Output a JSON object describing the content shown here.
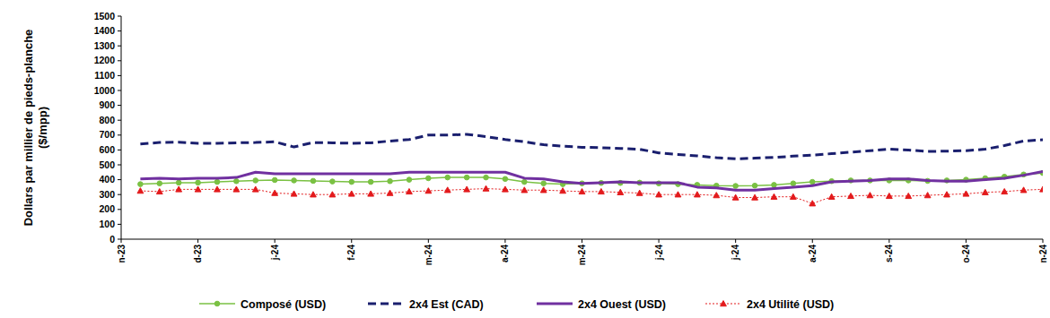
{
  "chart_data": {
    "type": "line",
    "y_label": [
      "Dollars par millier de pieds-planche",
      "($/mpp)"
    ],
    "categories": [
      "n-23",
      null,
      null,
      null,
      "d-23",
      null,
      null,
      null,
      "j-24",
      null,
      null,
      null,
      "f-24",
      null,
      null,
      null,
      "m-24",
      null,
      null,
      null,
      "a-24",
      null,
      null,
      null,
      "m-24",
      null,
      null,
      null,
      "j-24",
      null,
      null,
      null,
      "j-24",
      null,
      null,
      null,
      "a-24",
      null,
      null,
      null,
      "s-24",
      null,
      null,
      null,
      "o-24",
      null,
      null,
      null,
      "n-24"
    ],
    "ylim": [
      0,
      1500
    ],
    "yticks": [
      0,
      100,
      200,
      300,
      400,
      500,
      600,
      700,
      800,
      900,
      1000,
      1100,
      1200,
      1300,
      1400,
      1500
    ],
    "grid": false,
    "legend": "bottom",
    "series": [
      {
        "name": "Composé (USD)",
        "color": "#7ac143",
        "marker": "circle",
        "line_style": "solid",
        "values": [
          null,
          370,
          375,
          380,
          380,
          385,
          390,
          395,
          398,
          395,
          392,
          388,
          385,
          385,
          390,
          400,
          410,
          415,
          415,
          415,
          405,
          385,
          375,
          370,
          375,
          378,
          378,
          380,
          375,
          370,
          365,
          360,
          358,
          360,
          365,
          375,
          385,
          390,
          395,
          395,
          395,
          395,
          392,
          395,
          400,
          410,
          420,
          435,
          445
        ]
      },
      {
        "name": "2x4 Est (CAD)",
        "color": "#1a1f6e",
        "marker": "none",
        "line_style": "dashed",
        "values": [
          null,
          640,
          650,
          652,
          645,
          645,
          648,
          650,
          655,
          620,
          650,
          648,
          645,
          648,
          660,
          670,
          700,
          700,
          705,
          690,
          670,
          655,
          635,
          625,
          618,
          615,
          610,
          605,
          580,
          570,
          560,
          548,
          540,
          545,
          550,
          558,
          565,
          575,
          585,
          595,
          605,
          600,
          590,
          592,
          595,
          605,
          630,
          660,
          668
        ]
      },
      {
        "name": "2x4 Ouest (USD)",
        "color": "#7030a0",
        "marker": "none",
        "line_style": "solid",
        "values": [
          null,
          405,
          410,
          405,
          410,
          410,
          415,
          450,
          440,
          440,
          440,
          440,
          440,
          440,
          440,
          450,
          450,
          450,
          450,
          450,
          450,
          410,
          405,
          385,
          375,
          380,
          385,
          380,
          380,
          380,
          350,
          345,
          330,
          330,
          340,
          350,
          360,
          385,
          390,
          395,
          405,
          405,
          395,
          390,
          390,
          400,
          410,
          430,
          455
        ]
      },
      {
        "name": "2x4 Utilité (USD)",
        "color": "#e31a1c",
        "marker": "triangle",
        "line_style": "dotted",
        "values": [
          null,
          325,
          320,
          335,
          335,
          335,
          335,
          335,
          310,
          305,
          300,
          300,
          305,
          305,
          310,
          320,
          325,
          330,
          335,
          340,
          335,
          330,
          330,
          325,
          320,
          320,
          315,
          310,
          300,
          300,
          300,
          295,
          280,
          280,
          285,
          285,
          240,
          285,
          290,
          295,
          290,
          290,
          295,
          300,
          305,
          315,
          320,
          330,
          335
        ]
      }
    ]
  }
}
